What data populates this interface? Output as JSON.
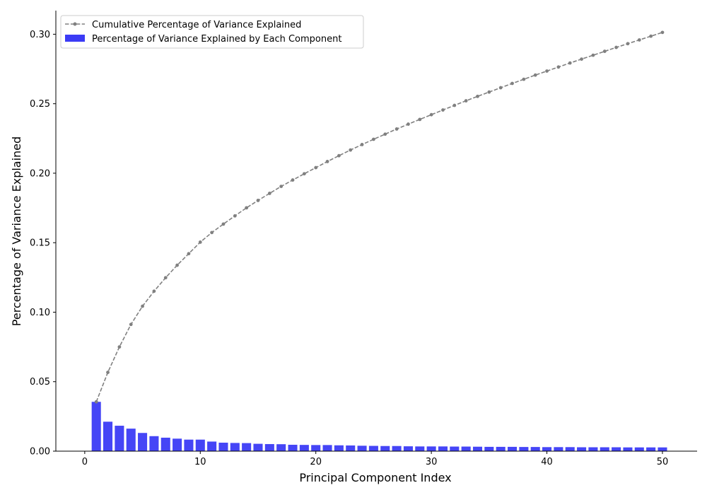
{
  "chart_data": {
    "type": "bar",
    "xlabel": "Principal Component Index",
    "ylabel": "Percentage of Variance Explained",
    "xlim": [
      -2.5,
      53
    ],
    "ylim": [
      0,
      0.317
    ],
    "x_ticks": [
      0,
      10,
      20,
      30,
      40,
      50
    ],
    "y_ticks": [
      0.0,
      0.05,
      0.1,
      0.15,
      0.2,
      0.25,
      0.3
    ],
    "x": [
      1,
      2,
      3,
      4,
      5,
      6,
      7,
      8,
      9,
      10,
      11,
      12,
      13,
      14,
      15,
      16,
      17,
      18,
      19,
      20,
      21,
      22,
      23,
      24,
      25,
      26,
      27,
      28,
      29,
      30,
      31,
      32,
      33,
      34,
      35,
      36,
      37,
      38,
      39,
      40,
      41,
      42,
      43,
      44,
      45,
      46,
      47,
      48,
      49,
      50
    ],
    "grid": false,
    "legend_position": "top-left",
    "series": [
      {
        "name": "Cumulative Percentage of Variance Explained",
        "kind": "line",
        "color": "#808080",
        "values": [
          0.0355,
          0.0567,
          0.075,
          0.0912,
          0.1043,
          0.1151,
          0.1248,
          0.1338,
          0.1421,
          0.1504,
          0.1573,
          0.1634,
          0.1693,
          0.1751,
          0.1804,
          0.1855,
          0.1905,
          0.1951,
          0.1996,
          0.204,
          0.2084,
          0.2126,
          0.2167,
          0.2206,
          0.2244,
          0.2281,
          0.2318,
          0.2353,
          0.2387,
          0.2421,
          0.2455,
          0.2488,
          0.2521,
          0.2553,
          0.2584,
          0.2615,
          0.2646,
          0.2676,
          0.2706,
          0.2735,
          0.2764,
          0.2793,
          0.2821,
          0.2849,
          0.2877,
          0.2905,
          0.2932,
          0.2959,
          0.2986,
          0.3013
        ]
      },
      {
        "name": "Percentage of Variance Explained by Each Component",
        "kind": "bar",
        "color": "#3b3bf5",
        "values": [
          0.0355,
          0.0212,
          0.0183,
          0.0162,
          0.0131,
          0.0108,
          0.0097,
          0.009,
          0.0083,
          0.0083,
          0.0069,
          0.0061,
          0.0059,
          0.0058,
          0.0053,
          0.0051,
          0.005,
          0.0046,
          0.0045,
          0.0044,
          0.0044,
          0.0042,
          0.0041,
          0.0039,
          0.0038,
          0.0037,
          0.0037,
          0.0035,
          0.0034,
          0.0034,
          0.0034,
          0.0033,
          0.0033,
          0.0032,
          0.0031,
          0.0031,
          0.0031,
          0.003,
          0.003,
          0.0029,
          0.0029,
          0.0029,
          0.0028,
          0.0028,
          0.0028,
          0.0028,
          0.0027,
          0.0027,
          0.0027,
          0.0027
        ]
      }
    ]
  }
}
